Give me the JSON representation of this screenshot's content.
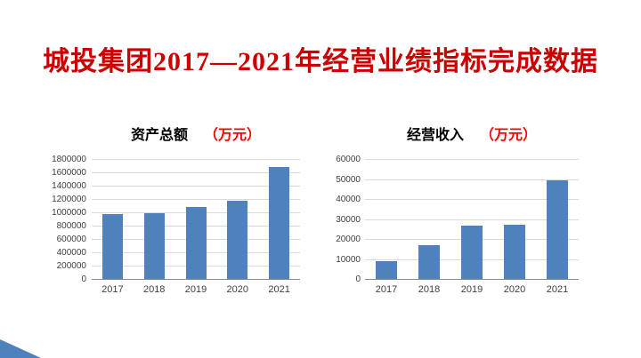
{
  "title": {
    "text": "城投集团2017—2021年经营业绩指标完成数据",
    "color": "#cc0000"
  },
  "colors": {
    "bar": "#4f81bd",
    "gridline": "#d9d9d9",
    "axis_line": "#8c8c8c",
    "tick_text": "#3f3f3f",
    "unit_red": "#ff0000",
    "corner_accent": "#4f81bd"
  },
  "chart_data": [
    {
      "type": "bar",
      "title": "资产总额",
      "unit_label": "（万元）",
      "categories": [
        "2017",
        "2018",
        "2019",
        "2020",
        "2021"
      ],
      "values": [
        990000,
        1000000,
        1100000,
        1190000,
        1690000
      ],
      "ylim": [
        0,
        1800000
      ],
      "yticks": [
        0,
        200000,
        400000,
        600000,
        800000,
        1000000,
        1200000,
        1400000,
        1600000,
        1800000
      ],
      "xlabel": "",
      "ylabel": "",
      "grid": true,
      "legend": "none",
      "bar_color": "#4f81bd"
    },
    {
      "type": "bar",
      "title": "经营收入",
      "unit_label": "（万元）",
      "categories": [
        "2017",
        "2018",
        "2019",
        "2020",
        "2021"
      ],
      "values": [
        9300,
        17300,
        27000,
        27700,
        49600
      ],
      "ylim": [
        0,
        60000
      ],
      "yticks": [
        0,
        10000,
        20000,
        30000,
        40000,
        50000,
        60000
      ],
      "xlabel": "",
      "ylabel": "",
      "grid": true,
      "legend": "none",
      "bar_color": "#4f81bd"
    }
  ]
}
